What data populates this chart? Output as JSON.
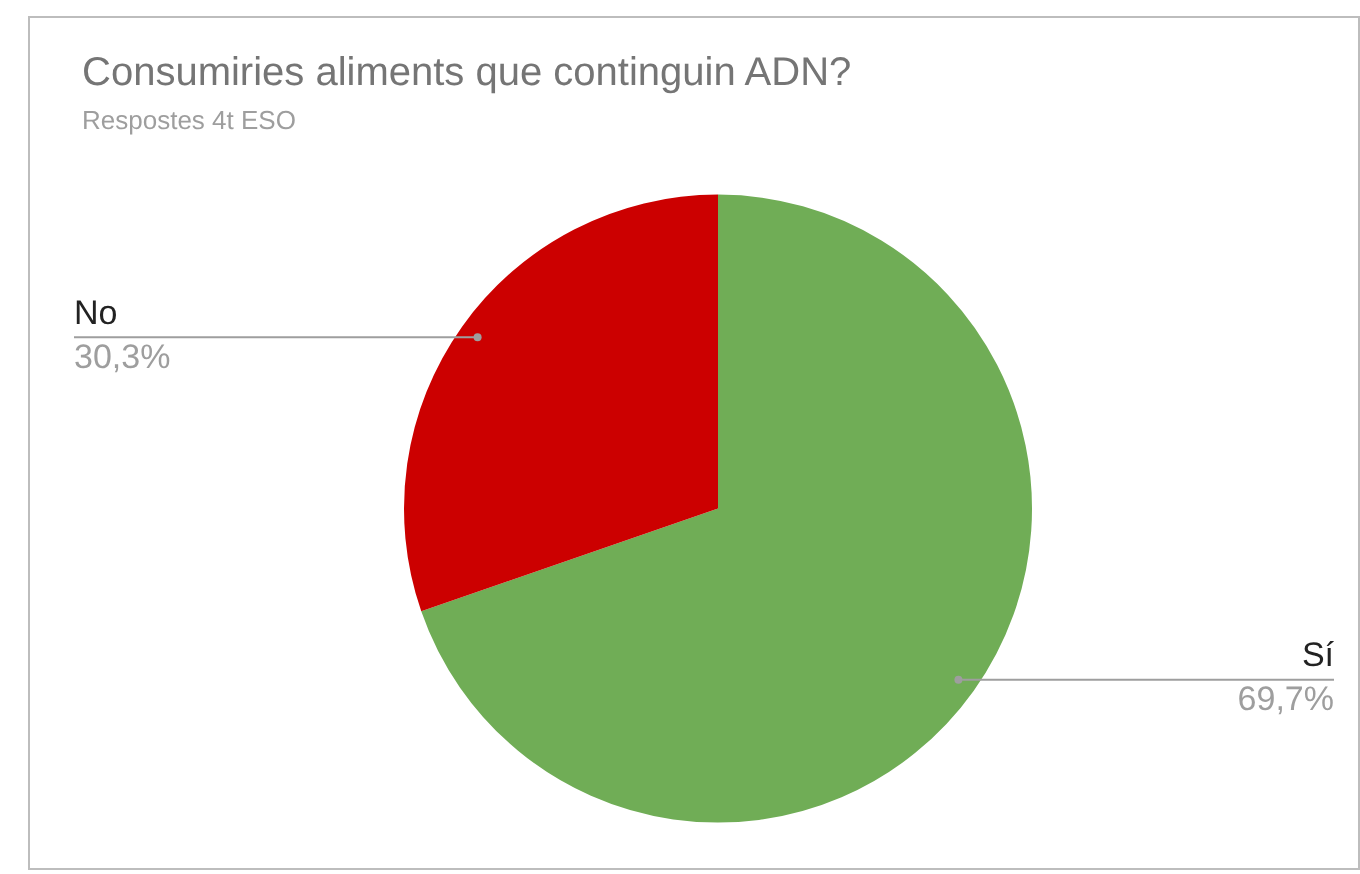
{
  "chart_data": {
    "type": "pie",
    "title": "Consumiries aliments que continguin ADN?",
    "subtitle": "Respostes 4t ESO",
    "categories": [
      "Sí",
      "No"
    ],
    "values": [
      69.7,
      30.3
    ],
    "colors": [
      "#70ad56",
      "#cc0000"
    ],
    "value_labels": [
      "69,7%",
      "30,3%"
    ],
    "legend": false
  }
}
